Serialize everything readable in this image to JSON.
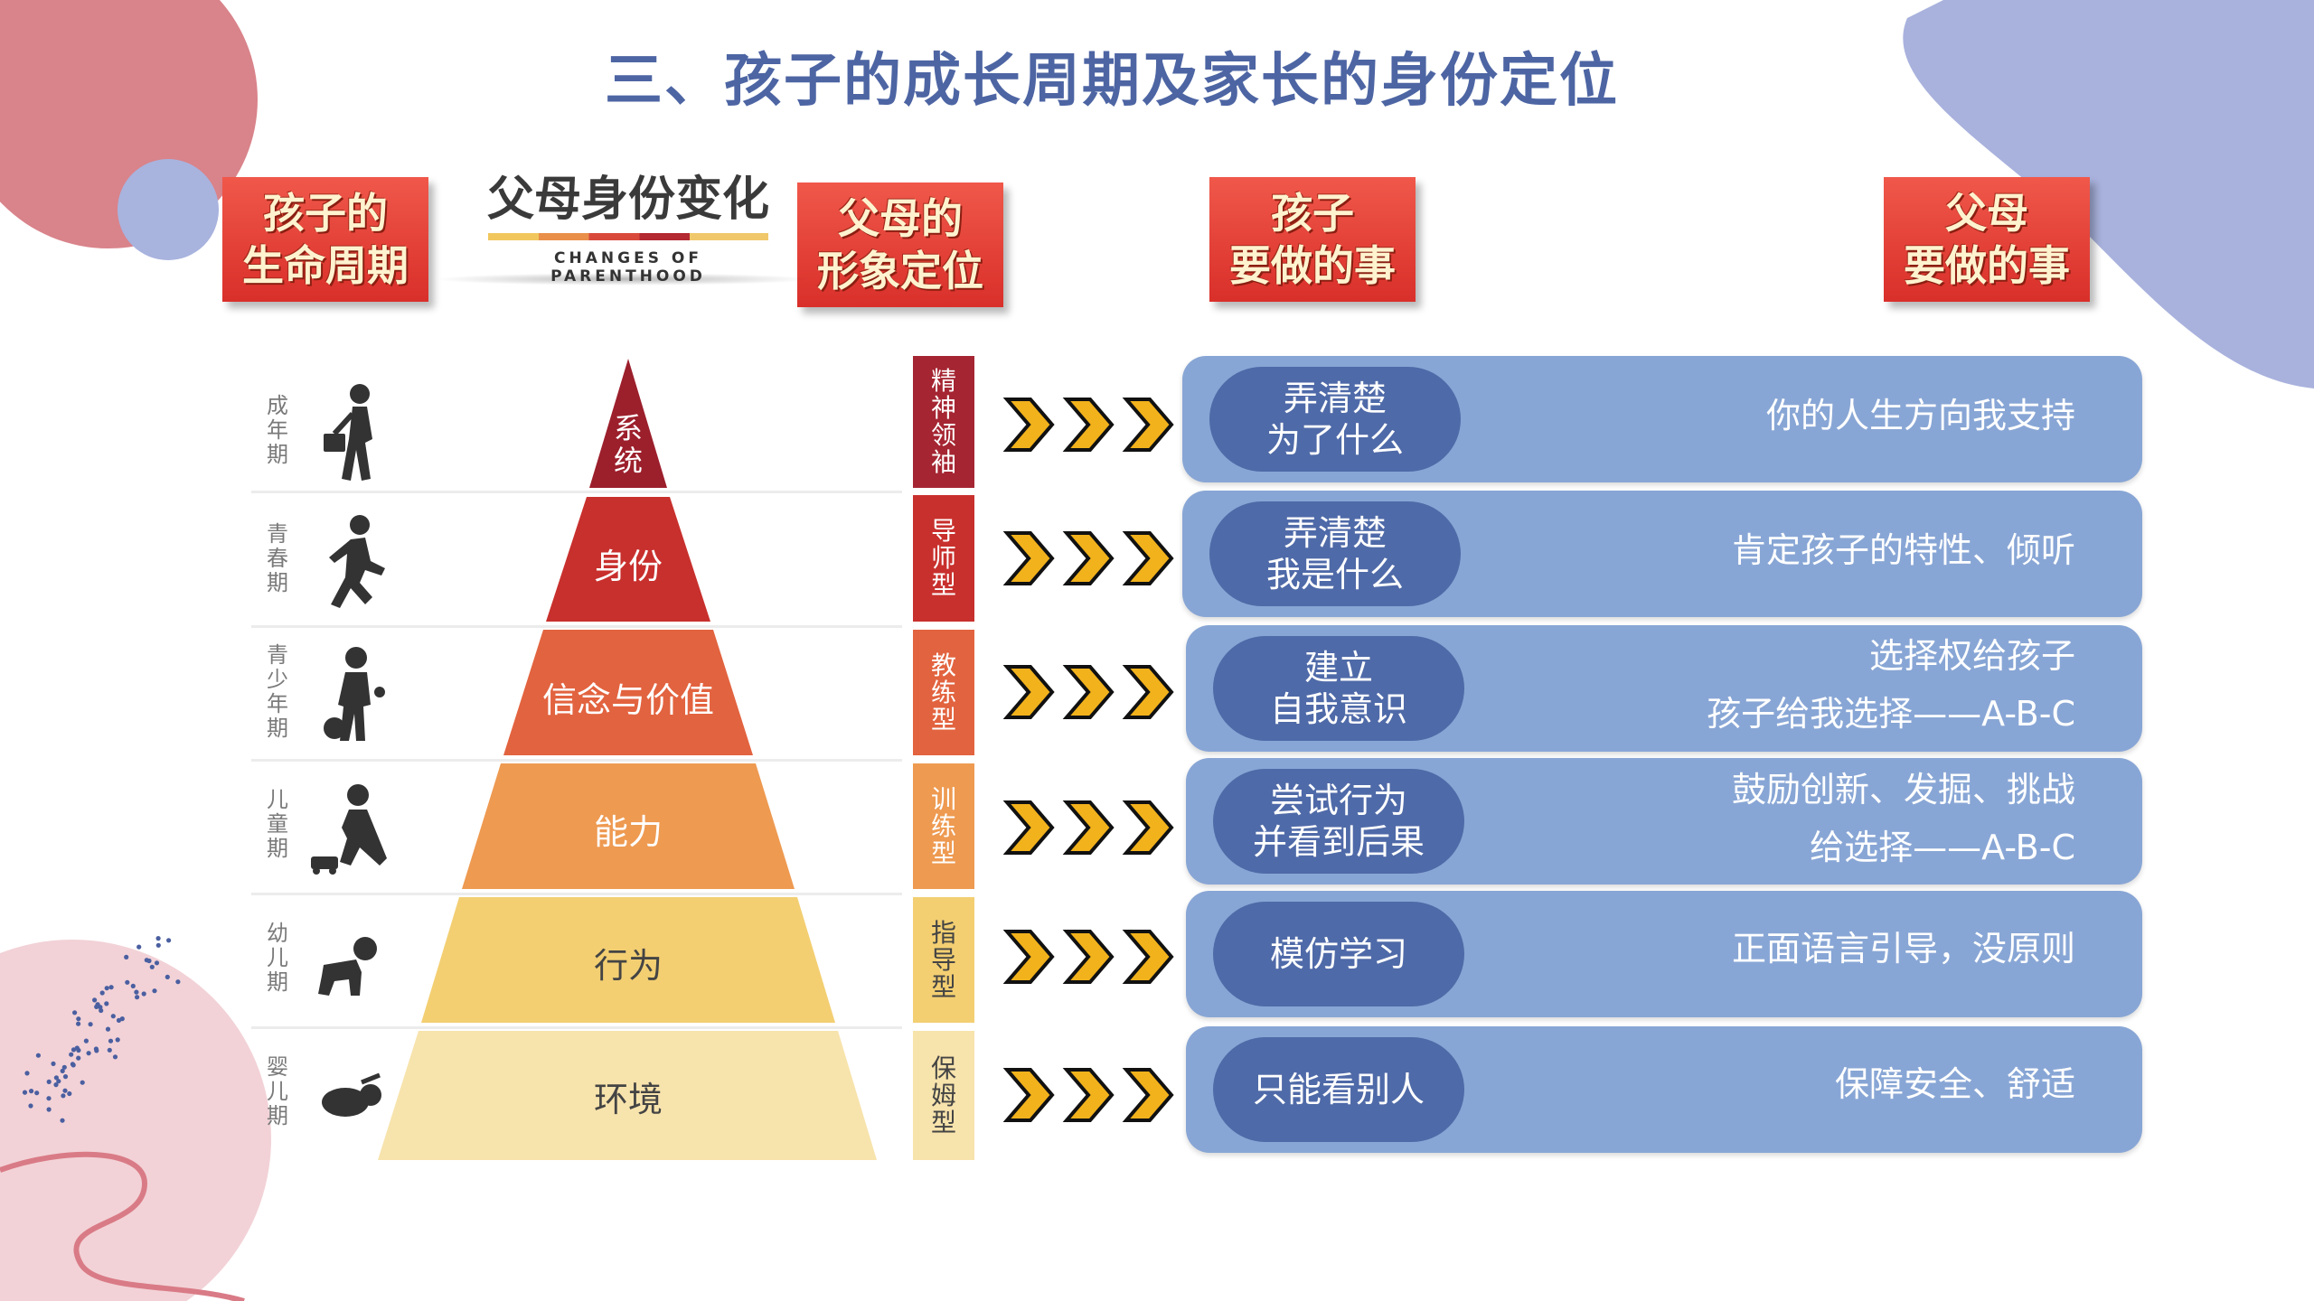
{
  "title": "三、孩子的成长周期及家长的身份定位",
  "headers": {
    "life_cycle": "孩子的\n生命周期",
    "parent_role": "父母的\n形象定位",
    "child_tasks": "孩子\n要做的事",
    "parent_tasks": "父母\n要做的事",
    "changes_title": "父母身份变化",
    "changes_subtitle": "CHANGES OF PARENTHOOD"
  },
  "rows": [
    {
      "stage": "成年期",
      "icon": "adult-walking-briefcase-icon",
      "tier": "系统",
      "tier_color": "#9c1f2c",
      "role": "精神领袖",
      "role_color": "#a52532",
      "child_task": "弄清楚\n为了什么",
      "parent_lines": [
        "你的人生方向我支持"
      ]
    },
    {
      "stage": "青春期",
      "icon": "teen-running-icon",
      "tier": "身份",
      "tier_color": "#c8302d",
      "role": "导师型",
      "role_color": "#c8302d",
      "child_task": "弄清楚\n我是什么",
      "parent_lines": [
        "肯定孩子的特性、倾听"
      ]
    },
    {
      "stage": "青少年期",
      "icon": "youth-with-ball-icon",
      "tier": "信念与价值",
      "tier_color": "#e2633f",
      "role": "教练型",
      "role_color": "#e2633f",
      "child_task": "建立\n自我意识",
      "parent_lines": [
        "选择权给孩子",
        "孩子给我选择——A-B-C"
      ]
    },
    {
      "stage": "儿童期",
      "icon": "child-playing-car-icon",
      "tier": "能力",
      "tier_color": "#ee9a51",
      "role": "训练型",
      "role_color": "#ee9a51",
      "child_task": "尝试行为\n并看到后果",
      "parent_lines": [
        "鼓励创新、发掘、挑战",
        "给选择——A-B-C"
      ]
    },
    {
      "stage": "幼儿期",
      "icon": "toddler-crawling-icon",
      "tier": "行为",
      "tier_color": "#f3cf72",
      "role": "指导型",
      "role_color": "#f3cf72",
      "child_task": "模仿学习",
      "parent_lines": [
        "正面语言引导，没原则"
      ]
    },
    {
      "stage": "婴儿期",
      "icon": "infant-lying-icon",
      "tier": "环境",
      "tier_color": "#f7e3ac",
      "role": "保姆型",
      "role_color": "#f7e3ac",
      "child_task": "只能看别人",
      "parent_lines": [
        "保障安全、舒适"
      ]
    }
  ],
  "colors": {
    "title": "#4d65a3",
    "pill": "#88a6d5",
    "oval": "#4f6aa8",
    "badge": "#e23d33",
    "chevron": "#f2b21c"
  }
}
